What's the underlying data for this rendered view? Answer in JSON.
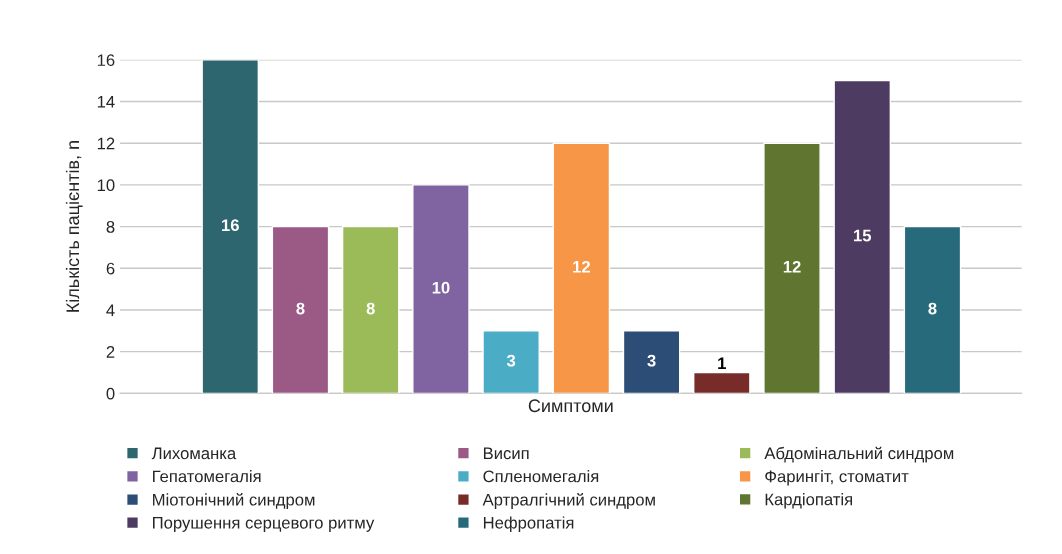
{
  "chart_data": {
    "type": "bar",
    "xlabel": "Симптоми",
    "ylabel": "Кількість пацієнтів, n",
    "categories": [
      null,
      null,
      null,
      null,
      null,
      null,
      null,
      null,
      null,
      null,
      null
    ],
    "series": [
      {
        "name": "Лихоманка",
        "color": "#2e6670",
        "values": [
          16,
          null,
          null,
          null,
          null,
          null,
          null,
          null,
          null,
          null,
          null
        ]
      },
      {
        "name": "Висип",
        "color": "#9a5a85",
        "values": [
          null,
          8,
          null,
          null,
          null,
          null,
          null,
          null,
          null,
          null,
          null
        ]
      },
      {
        "name": "Абдомінальний синдром",
        "color": "#9bbb59",
        "values": [
          null,
          null,
          8,
          null,
          null,
          null,
          null,
          null,
          null,
          null,
          null
        ]
      },
      {
        "name": "Гепатомегалія",
        "color": "#8064a2",
        "values": [
          null,
          null,
          null,
          10,
          null,
          null,
          null,
          null,
          null,
          null,
          null
        ]
      },
      {
        "name": "Спленомегалія",
        "color": "#4bacc6",
        "values": [
          null,
          null,
          null,
          null,
          3,
          null,
          null,
          null,
          null,
          null,
          null
        ]
      },
      {
        "name": "Фарингіт, стоматит",
        "color": "#f79646",
        "values": [
          null,
          null,
          null,
          null,
          null,
          12,
          null,
          null,
          null,
          null,
          null
        ]
      },
      {
        "name": "Міотонічний синдром",
        "color": "#2c4d75",
        "values": [
          null,
          null,
          null,
          null,
          null,
          null,
          3,
          null,
          null,
          null,
          null
        ]
      },
      {
        "name": "Артралгічний синдром",
        "color": "#772c2a",
        "values": [
          null,
          null,
          null,
          null,
          null,
          null,
          null,
          1,
          null,
          null,
          null
        ]
      },
      {
        "name": "Кардіопатія",
        "color": "#5f7530",
        "values": [
          null,
          null,
          null,
          null,
          null,
          null,
          null,
          null,
          12,
          null,
          null
        ]
      },
      {
        "name": "Порушення серцевого ритму",
        "color": "#4d3b62",
        "values": [
          null,
          null,
          null,
          null,
          null,
          null,
          null,
          null,
          null,
          15,
          null
        ]
      },
      {
        "name": "Нефропатія",
        "color": "#276a7c",
        "values": [
          null,
          null,
          null,
          null,
          null,
          null,
          null,
          null,
          null,
          null,
          8
        ]
      }
    ],
    "stacked": true,
    "ylim": [
      0,
      16
    ],
    "yticks": [
      0,
      2,
      4,
      6,
      8,
      10,
      12,
      14,
      16
    ],
    "grid": "y",
    "legend": "bottom",
    "tick_labels": "y",
    "data_labels": true
  }
}
